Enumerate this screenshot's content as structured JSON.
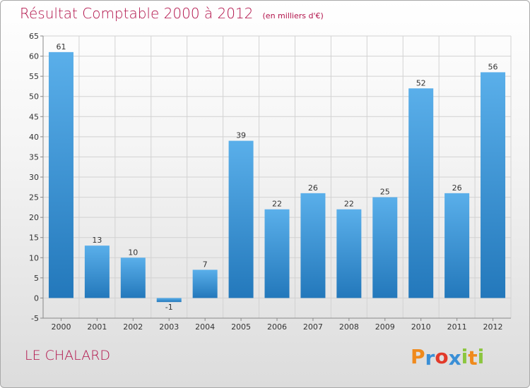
{
  "chart_data": {
    "type": "bar",
    "title": "Résultat Comptable 2000 à 2012",
    "subtitle": "(en milliers d'€)",
    "xlabel": "",
    "ylabel": "",
    "categories": [
      "2000",
      "2001",
      "2002",
      "2003",
      "2004",
      "2005",
      "2006",
      "2007",
      "2008",
      "2009",
      "2010",
      "2011",
      "2012"
    ],
    "values": [
      61,
      13,
      10,
      -1,
      7,
      39,
      22,
      26,
      22,
      25,
      52,
      26,
      56
    ],
    "value_labels": [
      "61",
      "13",
      "10",
      "-1",
      "7",
      "39",
      "22",
      "26",
      "22",
      "25",
      "52",
      "26",
      "56"
    ],
    "ylim": [
      -5,
      65
    ],
    "yticks": [
      -5,
      0,
      5,
      10,
      15,
      20,
      25,
      30,
      35,
      40,
      45,
      50,
      55,
      60,
      65
    ],
    "grid": true,
    "legend": "none",
    "colors": {
      "bar_light": "#5aafea",
      "bar_dark": "#2378bb",
      "grid": "#d2d2d2",
      "accent": "#b2124a"
    }
  },
  "footer": {
    "place": "LE CHALARD",
    "brand_letters": [
      {
        "char": "P",
        "color": "#f08a1c"
      },
      {
        "char": "r",
        "color": "#3a8fd6"
      },
      {
        "char": "o",
        "color": "#e23a2a"
      },
      {
        "char": "x",
        "color": "#3a8fd6"
      },
      {
        "char": "i",
        "color": "#8cc63f"
      },
      {
        "char": "t",
        "color": "#f08a1c"
      },
      {
        "char": "i",
        "color": "#8cc63f"
      }
    ]
  }
}
